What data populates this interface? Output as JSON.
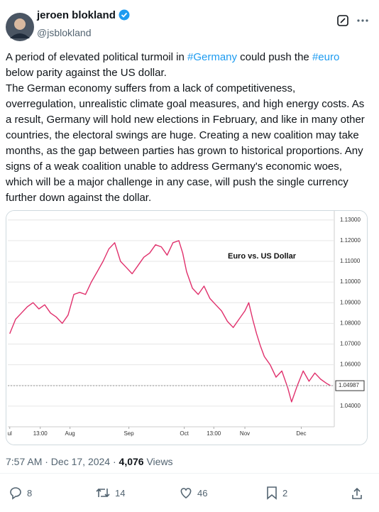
{
  "author": {
    "name": "jeroen blokland",
    "handle": "@jsblokland"
  },
  "text": {
    "paragraph1": [
      "A period of elevated political turmoil in ",
      "#Germany",
      " could push the ",
      "#euro",
      " below parity against the US dollar."
    ],
    "paragraph2": "The German economy suffers from a lack of competitiveness, overregulation, unrealistic climate goal measures, and high energy costs. As a result, Germany will hold new elections in February, and like in many other countries, the electoral swings are huge. Creating a new coalition may take months, as the gap between parties has grown to historical proportions. Any signs of a weak coalition unable to address Germany's economic woes, which will be a major challenge in any case, will push the single currency further down against the dollar."
  },
  "meta": {
    "time": "7:57 AM · Dec 17, 2024 · ",
    "views": "4,076",
    "views_label": " Views"
  },
  "actions": {
    "replies": 8,
    "reposts": 14,
    "likes": 46,
    "bookmarks": 2
  },
  "chart_data": {
    "type": "line",
    "title": "Euro vs. US Dollar",
    "x": [
      0,
      3,
      6,
      9,
      12,
      15,
      18,
      21,
      24,
      27,
      30,
      33,
      36,
      39,
      42,
      45,
      48,
      51,
      54,
      57,
      60,
      63,
      66,
      69,
      72,
      75,
      78,
      81,
      84,
      87,
      89,
      91,
      94,
      97,
      100,
      103,
      106,
      109,
      112,
      115,
      118,
      121,
      123,
      125,
      127,
      129,
      131,
      134,
      137,
      140,
      143,
      145,
      148,
      151,
      154,
      157,
      160,
      163,
      165
    ],
    "series": [
      {
        "name": "Euro vs. US Dollar",
        "color": "#e0306c",
        "values": [
          1.075,
          1.082,
          1.085,
          1.088,
          1.09,
          1.087,
          1.089,
          1.085,
          1.083,
          1.08,
          1.084,
          1.094,
          1.095,
          1.094,
          1.1,
          1.105,
          1.11,
          1.116,
          1.119,
          1.11,
          1.107,
          1.104,
          1.108,
          1.112,
          1.114,
          1.118,
          1.117,
          1.113,
          1.119,
          1.12,
          1.114,
          1.105,
          1.097,
          1.094,
          1.098,
          1.092,
          1.089,
          1.086,
          1.081,
          1.078,
          1.082,
          1.086,
          1.09,
          1.082,
          1.075,
          1.069,
          1.064,
          1.06,
          1.054,
          1.057,
          1.049,
          1.042,
          1.05,
          1.057,
          1.052,
          1.056,
          1.053,
          1.051,
          1.0499
        ]
      }
    ],
    "xlim": [
      -1,
      167
    ],
    "xticks": [
      {
        "value": 0,
        "label": "ul"
      },
      {
        "value": 15.7,
        "label": "13:00"
      },
      {
        "value": 31,
        "label": "Aug"
      },
      {
        "value": 61.3,
        "label": "Sep"
      },
      {
        "value": 89.8,
        "label": "Oct"
      },
      {
        "value": 105,
        "label": "13:00"
      },
      {
        "value": 121,
        "label": "Nov"
      },
      {
        "value": 150,
        "label": "Dec"
      }
    ],
    "ylim": [
      1.03,
      1.133
    ],
    "yticks": [
      {
        "value": 1.04,
        "label": "1.04000"
      },
      {
        "value": 1.05,
        "label": "1.05000"
      },
      {
        "value": 1.06,
        "label": "1.06000"
      },
      {
        "value": 1.07,
        "label": "1.07000"
      },
      {
        "value": 1.08,
        "label": "1.08000"
      },
      {
        "value": 1.09,
        "label": "1.09000"
      },
      {
        "value": 1.1,
        "label": "1.10000"
      },
      {
        "value": 1.11,
        "label": "1.11000"
      },
      {
        "value": 1.12,
        "label": "1.12000"
      },
      {
        "value": 1.13,
        "label": "1.13000"
      }
    ],
    "current_price": 1.04987,
    "grid": true
  }
}
